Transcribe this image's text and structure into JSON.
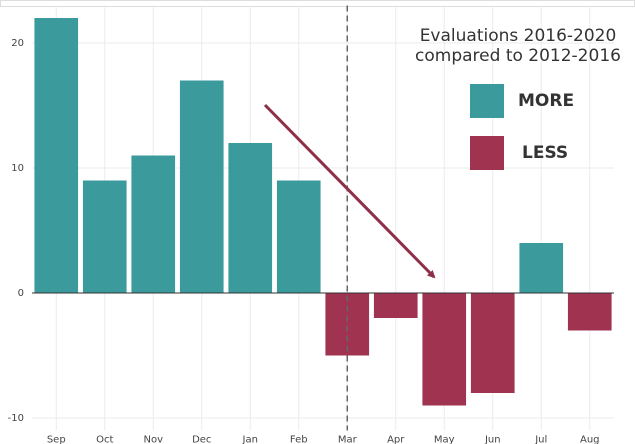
{
  "chart_data": {
    "type": "bar",
    "categories": [
      "Sep",
      "Oct",
      "Nov",
      "Dec",
      "Jan",
      "Feb",
      "Mar",
      "Apr",
      "May",
      "Jun",
      "Jul",
      "Aug"
    ],
    "values": [
      22,
      9,
      11,
      17,
      12,
      9,
      -5,
      -2,
      -9,
      -8,
      4,
      -3
    ],
    "ylim": [
      -11,
      23
    ],
    "yticks": [
      -10,
      0,
      10,
      20
    ],
    "grid": true,
    "legend_title": [
      "Evaluations 2016-2020",
      "compared to 2012-2016"
    ],
    "legend": [
      {
        "name": "MORE",
        "color": "#3a9a9c"
      },
      {
        "name": "LESS",
        "color": "#a0334f"
      }
    ],
    "vline_category": "Mar"
  }
}
